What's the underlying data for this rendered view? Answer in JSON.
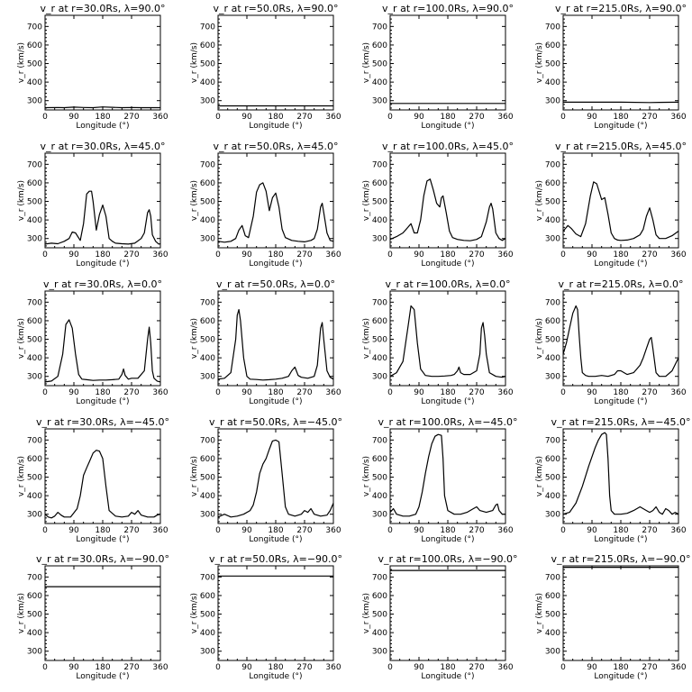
{
  "chart_data": {
    "type": "line",
    "layout": "grid 5 rows x 4 columns",
    "xlabel": "Longitude (°)",
    "ylabel": "v_r (km/s)",
    "xlim": [
      0,
      360
    ],
    "ylim": [
      250,
      760
    ],
    "xticks": [
      0,
      90,
      180,
      270,
      360
    ],
    "yticks": [
      300,
      400,
      500,
      600,
      700
    ],
    "panels": [
      {
        "title": "v_r at r=30.0Rs, λ=90.0°",
        "x": [
          0,
          40,
          60,
          90,
          120,
          150,
          180,
          210,
          240,
          270,
          300,
          330,
          360
        ],
        "y": [
          262,
          263,
          262,
          265,
          263,
          262,
          266,
          264,
          262,
          263,
          262,
          262,
          262
        ]
      },
      {
        "title": "v_r at r=50.0Rs, λ=90.0°",
        "x": [
          0,
          360
        ],
        "y": [
          272,
          272
        ]
      },
      {
        "title": "v_r at r=100.0Rs, λ=90.0°",
        "x": [
          0,
          360
        ],
        "y": [
          285,
          285
        ]
      },
      {
        "title": "v_r at r=215.0Rs, λ=90.0°",
        "x": [
          0,
          180,
          270,
          300,
          360
        ],
        "y": [
          292,
          292,
          290,
          291,
          292
        ]
      },
      {
        "title": "v_r at r=30.0Rs, λ=45.0°",
        "x": [
          0,
          20,
          40,
          60,
          75,
          85,
          95,
          110,
          120,
          130,
          138,
          145,
          150,
          160,
          170,
          180,
          190,
          200,
          210,
          220,
          240,
          260,
          280,
          300,
          310,
          320,
          325,
          330,
          335,
          345,
          355,
          360
        ],
        "y": [
          270,
          275,
          272,
          285,
          300,
          335,
          330,
          290,
          380,
          540,
          555,
          555,
          500,
          345,
          430,
          480,
          420,
          300,
          285,
          275,
          272,
          270,
          275,
          300,
          330,
          440,
          455,
          420,
          320,
          285,
          270,
          272
        ]
      },
      {
        "title": "v_r at r=50.0Rs, λ=45.0°",
        "x": [
          0,
          20,
          40,
          55,
          65,
          75,
          85,
          95,
          110,
          120,
          130,
          140,
          150,
          160,
          170,
          180,
          190,
          200,
          210,
          230,
          250,
          270,
          290,
          300,
          310,
          320,
          325,
          330,
          340,
          350,
          360
        ],
        "y": [
          285,
          280,
          285,
          300,
          345,
          370,
          315,
          305,
          420,
          550,
          590,
          600,
          555,
          450,
          520,
          545,
          470,
          350,
          305,
          290,
          285,
          282,
          290,
          300,
          350,
          470,
          490,
          440,
          330,
          290,
          285
        ]
      },
      {
        "title": "v_r at r=100.0Rs, λ=45.0°",
        "x": [
          0,
          20,
          40,
          55,
          65,
          75,
          85,
          95,
          105,
          115,
          125,
          135,
          145,
          155,
          160,
          165,
          175,
          185,
          195,
          210,
          230,
          250,
          270,
          285,
          300,
          310,
          315,
          320,
          330,
          340,
          350,
          360
        ],
        "y": [
          295,
          310,
          330,
          360,
          380,
          330,
          330,
          400,
          530,
          610,
          620,
          560,
          490,
          470,
          520,
          530,
          440,
          340,
          305,
          295,
          290,
          288,
          295,
          310,
          390,
          470,
          490,
          460,
          330,
          300,
          290,
          300
        ]
      },
      {
        "title": "v_r at r=215.0Rs, λ=45.0°",
        "x": [
          0,
          15,
          25,
          40,
          55,
          70,
          85,
          95,
          105,
          120,
          130,
          140,
          150,
          160,
          170,
          180,
          200,
          220,
          240,
          250,
          260,
          270,
          280,
          290,
          300,
          320,
          340,
          360
        ],
        "y": [
          340,
          370,
          355,
          325,
          310,
          380,
          530,
          605,
          595,
          510,
          520,
          430,
          330,
          300,
          292,
          290,
          292,
          300,
          320,
          350,
          420,
          465,
          400,
          320,
          300,
          300,
          315,
          340
        ]
      },
      {
        "title": "v_r at r=30.0Rs, λ=0.0°",
        "x": [
          0,
          20,
          40,
          55,
          65,
          75,
          85,
          95,
          105,
          115,
          130,
          150,
          170,
          190,
          210,
          230,
          240,
          245,
          250,
          255,
          260,
          270,
          290,
          310,
          320,
          325,
          330,
          335,
          340,
          350,
          360
        ],
        "y": [
          270,
          275,
          300,
          420,
          580,
          605,
          560,
          420,
          310,
          285,
          282,
          278,
          280,
          280,
          282,
          285,
          310,
          340,
          305,
          295,
          285,
          290,
          290,
          330,
          500,
          565,
          480,
          330,
          290,
          275,
          270
        ]
      },
      {
        "title": "v_r at r=50.0Rs, λ=0.0°",
        "x": [
          0,
          20,
          40,
          55,
          60,
          65,
          70,
          80,
          90,
          100,
          120,
          140,
          160,
          180,
          200,
          220,
          230,
          240,
          250,
          260,
          280,
          300,
          310,
          320,
          325,
          330,
          340,
          350,
          360
        ],
        "y": [
          285,
          290,
          320,
          500,
          630,
          660,
          600,
          400,
          300,
          285,
          283,
          280,
          282,
          285,
          290,
          300,
          330,
          350,
          305,
          295,
          290,
          300,
          360,
          560,
          590,
          500,
          330,
          295,
          285
        ]
      },
      {
        "title": "v_r at r=100.0Rs, λ=0.0°",
        "x": [
          0,
          20,
          40,
          55,
          65,
          75,
          85,
          95,
          110,
          130,
          150,
          170,
          190,
          200,
          210,
          215,
          220,
          230,
          250,
          270,
          280,
          285,
          290,
          295,
          300,
          310,
          330,
          350,
          360
        ],
        "y": [
          300,
          320,
          380,
          560,
          680,
          660,
          480,
          340,
          305,
          300,
          300,
          302,
          305,
          310,
          330,
          350,
          320,
          310,
          310,
          330,
          420,
          560,
          590,
          520,
          420,
          320,
          300,
          295,
          300
        ]
      },
      {
        "title": "v_r at r=215.0Rs, λ=0.0°",
        "x": [
          0,
          10,
          20,
          30,
          40,
          45,
          50,
          55,
          60,
          70,
          80,
          100,
          120,
          140,
          160,
          170,
          180,
          190,
          200,
          220,
          240,
          250,
          260,
          270,
          275,
          280,
          290,
          300,
          320,
          340,
          360
        ],
        "y": [
          420,
          480,
          560,
          640,
          680,
          660,
          520,
          400,
          320,
          305,
          300,
          300,
          305,
          300,
          310,
          330,
          330,
          320,
          310,
          320,
          360,
          400,
          450,
          500,
          510,
          450,
          320,
          300,
          300,
          330,
          400
        ]
      },
      {
        "title": "v_r at r=30.0Rs, λ=−45.0°",
        "x": [
          0,
          10,
          20,
          30,
          40,
          50,
          60,
          80,
          100,
          110,
          120,
          130,
          140,
          150,
          160,
          170,
          180,
          190,
          200,
          220,
          240,
          260,
          270,
          280,
          290,
          300,
          320,
          340,
          350,
          360
        ],
        "y": [
          300,
          285,
          280,
          290,
          310,
          295,
          285,
          285,
          330,
          400,
          510,
          550,
          590,
          630,
          645,
          640,
          600,
          450,
          320,
          290,
          285,
          290,
          310,
          300,
          320,
          295,
          285,
          285,
          295,
          300
        ]
      },
      {
        "title": "v_r at r=50.0Rs, λ=−45.0°",
        "x": [
          0,
          20,
          40,
          60,
          80,
          100,
          110,
          120,
          130,
          140,
          150,
          160,
          170,
          180,
          190,
          200,
          210,
          220,
          240,
          260,
          270,
          280,
          290,
          300,
          320,
          340,
          350,
          360
        ],
        "y": [
          285,
          300,
          285,
          290,
          300,
          320,
          350,
          420,
          520,
          570,
          600,
          650,
          695,
          700,
          690,
          520,
          340,
          300,
          290,
          300,
          320,
          310,
          330,
          300,
          290,
          295,
          320,
          360
        ]
      },
      {
        "title": "v_r at r=100.0Rs, λ=−45.0°",
        "x": [
          0,
          10,
          20,
          40,
          60,
          80,
          90,
          100,
          110,
          120,
          130,
          140,
          150,
          160,
          165,
          170,
          180,
          200,
          220,
          240,
          260,
          270,
          280,
          300,
          320,
          330,
          335,
          340,
          350,
          360
        ],
        "y": [
          310,
          330,
          300,
          290,
          290,
          300,
          340,
          420,
          520,
          610,
          680,
          720,
          730,
          725,
          600,
          400,
          320,
          300,
          300,
          310,
          330,
          340,
          320,
          310,
          320,
          350,
          355,
          320,
          300,
          300
        ]
      },
      {
        "title": "v_r at r=215.0Rs, λ=−45.0°",
        "x": [
          0,
          20,
          40,
          60,
          80,
          100,
          110,
          120,
          130,
          135,
          140,
          145,
          150,
          160,
          180,
          200,
          220,
          240,
          260,
          270,
          280,
          290,
          300,
          310,
          320,
          330,
          340,
          350,
          360
        ],
        "y": [
          300,
          310,
          360,
          450,
          560,
          660,
          700,
          730,
          740,
          730,
          600,
          400,
          320,
          300,
          300,
          305,
          320,
          340,
          320,
          310,
          320,
          340,
          310,
          300,
          330,
          320,
          300,
          310,
          300
        ]
      },
      {
        "title": "v_r at r=30.0Rs, λ=−90.0°",
        "x": [
          0,
          360
        ],
        "y": [
          648,
          648
        ]
      },
      {
        "title": "v_r at r=50.0Rs, λ=−90.0°",
        "x": [
          0,
          360
        ],
        "y": [
          705,
          705
        ]
      },
      {
        "title": "v_r at r=100.0Rs, λ=−90.0°",
        "x": [
          0,
          360
        ],
        "y": [
          735,
          735
        ]
      },
      {
        "title": "v_r at r=215.0Rs, λ=−90.0°",
        "x": [
          0,
          360
        ],
        "y": [
          752,
          752
        ]
      }
    ]
  }
}
